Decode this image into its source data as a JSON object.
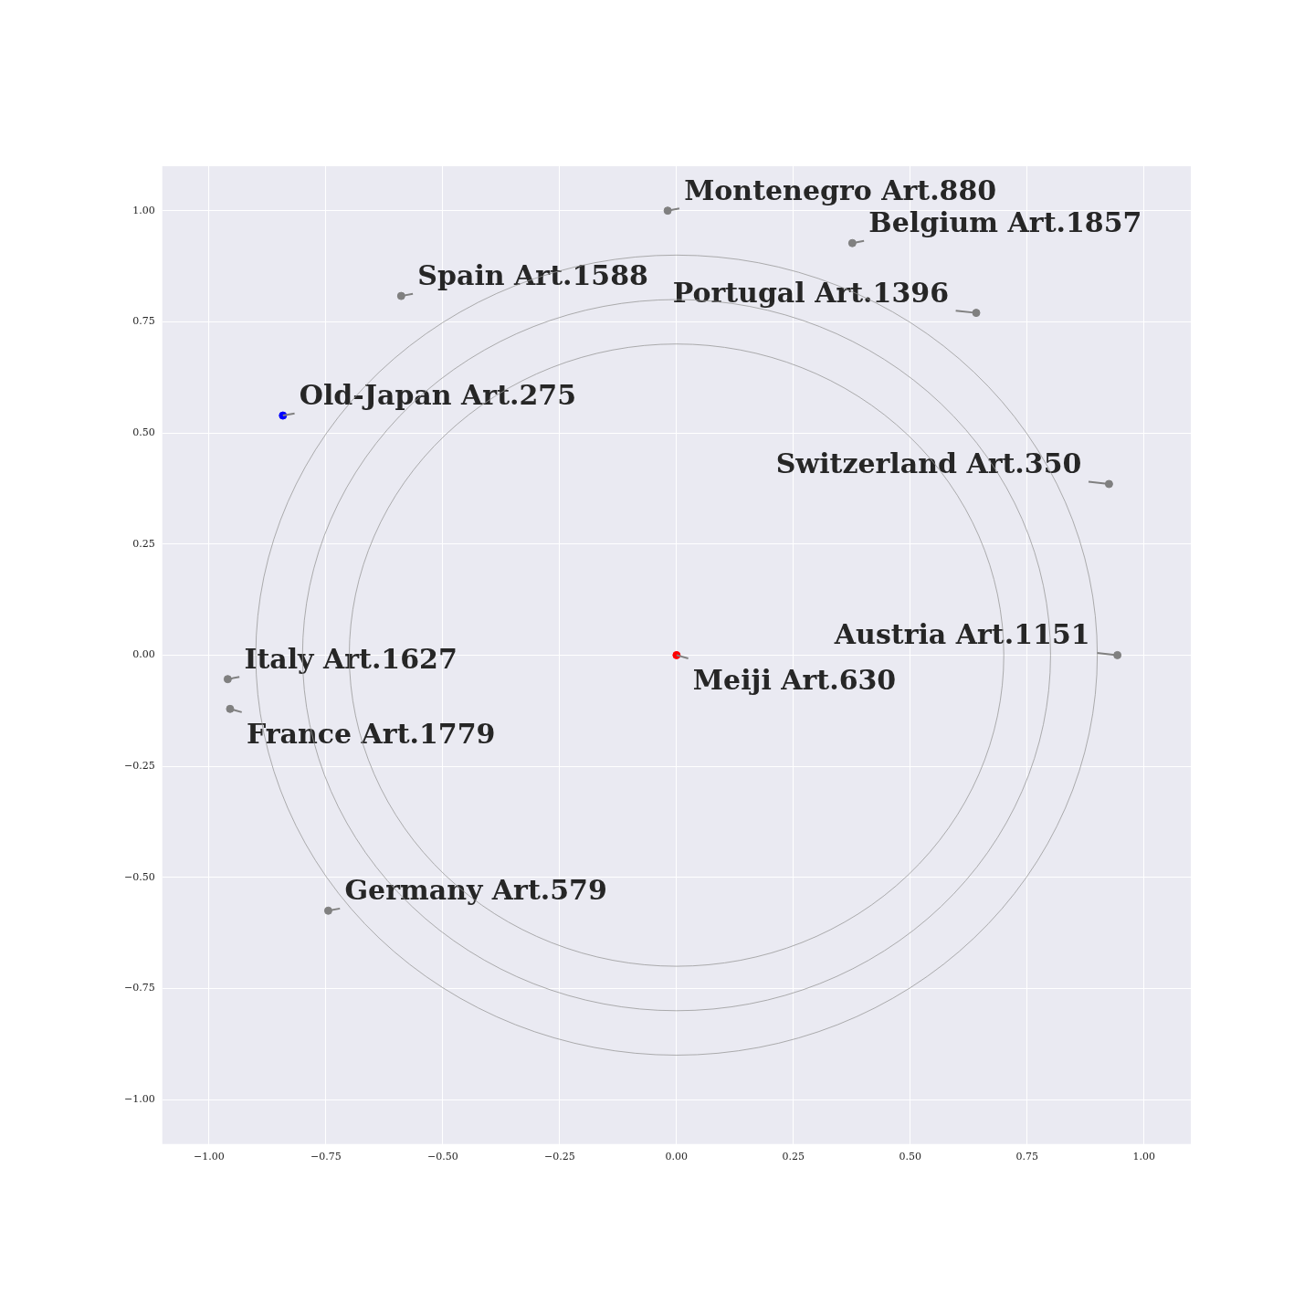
{
  "chart_data": {
    "type": "scatter",
    "xlim": [
      -1.1,
      1.1
    ],
    "ylim": [
      -1.1,
      1.1
    ],
    "xticks": [
      {
        "value": -1,
        "label": "−1.00"
      },
      {
        "value": -0.75,
        "label": "−0.75"
      },
      {
        "value": -0.5,
        "label": "−0.50"
      },
      {
        "value": -0.25,
        "label": "−0.25"
      },
      {
        "value": 0,
        "label": "0.00"
      },
      {
        "value": 0.25,
        "label": "0.25"
      },
      {
        "value": 0.5,
        "label": "0.50"
      },
      {
        "value": 0.75,
        "label": "0.75"
      },
      {
        "value": 1,
        "label": "1.00"
      }
    ],
    "yticks": [
      {
        "value": -1,
        "label": "−1.00"
      },
      {
        "value": -0.75,
        "label": "−0.75"
      },
      {
        "value": -0.5,
        "label": "−0.50"
      },
      {
        "value": -0.25,
        "label": "−0.25"
      },
      {
        "value": 0,
        "label": "0.00"
      },
      {
        "value": 0.25,
        "label": "0.25"
      },
      {
        "value": 0.5,
        "label": "0.50"
      },
      {
        "value": 0.75,
        "label": "0.75"
      },
      {
        "value": 1,
        "label": "1.00"
      }
    ],
    "grid": true,
    "marker": "circle",
    "series": [
      {
        "type": "scatter",
        "x": [
          -0.019,
          0.376,
          0.641,
          -0.589,
          -0.842,
          0.925,
          0.943,
          0,
          -0.96,
          -0.955,
          -0.745
        ],
        "values": [
          1.0,
          0.927,
          0.77,
          0.808,
          0.539,
          0.385,
          0,
          0,
          -0.054,
          -0.121,
          -0.575
        ],
        "colors": [
          "#808080",
          "#808080",
          "#808080",
          "#808080",
          "#0000ff",
          "#808080",
          "#808080",
          "#ff0000",
          "#808080",
          "#808080",
          "#808080"
        ]
      }
    ],
    "annotations": [
      {
        "text": "Montenegro Art.880",
        "x": -0.019,
        "y": 1.0
      },
      {
        "text": "Belgium Art.1857",
        "x": 0.376,
        "y": 0.927
      },
      {
        "text": "Portugal Art.1396",
        "x": 0.641,
        "y": 0.77
      },
      {
        "text": "Spain Art.1588",
        "x": -0.589,
        "y": 0.808
      },
      {
        "text": "Old-Japan Art.275",
        "x": -0.842,
        "y": 0.539
      },
      {
        "text": "Switzerland Art.350",
        "x": 0.925,
        "y": 0.385
      },
      {
        "text": "Austria Art.1151",
        "x": 0.943,
        "y": 0
      },
      {
        "text": "Meiji Art.630",
        "x": 0,
        "y": 0
      },
      {
        "text": "Italy Art.1627",
        "x": -0.96,
        "y": -0.054
      },
      {
        "text": "France Art.1779",
        "x": -0.955,
        "y": -0.121
      },
      {
        "text": "Germany Art.579",
        "x": -0.745,
        "y": -0.575
      }
    ]
  }
}
